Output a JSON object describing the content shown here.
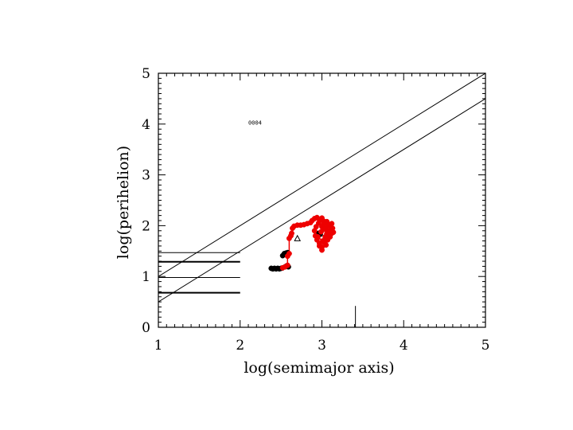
{
  "chart_data": {
    "type": "scatter",
    "xlabel": "log(semimajor axis)",
    "ylabel": "log(perihelion)",
    "xlim": [
      1,
      5
    ],
    "ylim": [
      0,
      5
    ],
    "xticks": [
      1,
      2,
      3,
      4,
      5
    ],
    "yticks": [
      0,
      1,
      2,
      3,
      4,
      5
    ],
    "xtick_labels": [
      "1",
      "2",
      "3",
      "4",
      "5"
    ],
    "ytick_labels": [
      "0",
      "1",
      "2",
      "3",
      "4",
      "5"
    ],
    "annotation": "0004",
    "annotation_at": [
      2.1,
      4.02
    ],
    "grid": false,
    "lines": [
      {
        "kind": "diagonal",
        "x": [
          1,
          5
        ],
        "y": [
          1.0,
          5.0
        ]
      },
      {
        "kind": "diagonal",
        "x": [
          1,
          5
        ],
        "y": [
          0.5,
          4.5
        ]
      },
      {
        "kind": "horizontal",
        "x": [
          1,
          2
        ],
        "y": 1.47
      },
      {
        "kind": "horizontal",
        "x": [
          1,
          2
        ],
        "y": 1.29,
        "bold": true
      },
      {
        "kind": "horizontal",
        "x": [
          1,
          2
        ],
        "y": 0.98
      },
      {
        "kind": "horizontal",
        "x": [
          1,
          2
        ],
        "y": 0.68,
        "bold": true
      },
      {
        "kind": "vertical",
        "x": 3.41,
        "y": [
          0,
          0.42
        ]
      }
    ],
    "series": [
      {
        "color": "#000000",
        "marker": "circle",
        "points": [
          [
            2.38,
            1.16
          ],
          [
            2.4,
            1.15
          ],
          [
            2.42,
            1.16
          ],
          [
            2.44,
            1.15
          ],
          [
            2.46,
            1.16
          ],
          [
            2.48,
            1.15
          ],
          [
            2.5,
            1.16
          ],
          [
            2.52,
            1.17
          ],
          [
            2.55,
            1.19
          ],
          [
            2.57,
            1.21
          ],
          [
            2.59,
            1.19
          ],
          [
            2.52,
            1.41
          ],
          [
            2.54,
            1.45
          ],
          [
            2.56,
            1.46
          ],
          [
            2.58,
            1.47
          ],
          [
            2.56,
            1.43
          ],
          [
            3.09,
            1.84
          ],
          [
            3.11,
            1.86
          ],
          [
            2.96,
            1.85
          ],
          [
            2.98,
            1.83
          ]
        ]
      },
      {
        "color": "#ee0000",
        "marker": "circle",
        "points": [
          [
            2.52,
            1.17
          ],
          [
            2.55,
            1.19
          ],
          [
            2.58,
            1.22
          ],
          [
            2.58,
            1.4
          ],
          [
            2.6,
            1.45
          ],
          [
            2.6,
            1.75
          ],
          [
            2.62,
            1.8
          ],
          [
            2.63,
            1.85
          ],
          [
            2.64,
            1.95
          ],
          [
            2.66,
            1.99
          ],
          [
            2.7,
            2.01
          ],
          [
            2.74,
            2.01
          ],
          [
            2.78,
            2.02
          ],
          [
            2.82,
            2.04
          ],
          [
            2.86,
            2.06
          ],
          [
            2.88,
            2.1
          ],
          [
            2.91,
            2.14
          ],
          [
            2.94,
            2.16
          ],
          [
            2.97,
            2.12
          ],
          [
            3.0,
            2.15
          ],
          [
            3.02,
            2.09
          ],
          [
            2.96,
            2.05
          ],
          [
            2.93,
            1.98
          ],
          [
            2.91,
            1.9
          ],
          [
            2.92,
            1.8
          ],
          [
            2.94,
            1.72
          ],
          [
            2.97,
            1.65
          ],
          [
            3.0,
            1.58
          ],
          [
            3.0,
            1.52
          ],
          [
            2.97,
            1.6
          ],
          [
            3.01,
            1.7
          ],
          [
            3.04,
            1.78
          ],
          [
            3.06,
            1.84
          ],
          [
            3.03,
            1.93
          ],
          [
            3.0,
            1.98
          ],
          [
            3.05,
            1.95
          ],
          [
            3.08,
            1.89
          ],
          [
            3.1,
            2.0
          ],
          [
            3.12,
            2.04
          ],
          [
            3.13,
            1.95
          ],
          [
            3.12,
            1.85
          ],
          [
            3.1,
            1.78
          ],
          [
            3.07,
            1.72
          ],
          [
            3.05,
            1.62
          ],
          [
            3.02,
            1.68
          ],
          [
            2.95,
            1.78
          ],
          [
            2.99,
            1.88
          ],
          [
            3.02,
            2.02
          ],
          [
            3.06,
            2.08
          ],
          [
            3.08,
            2.02
          ],
          [
            3.11,
            1.9
          ],
          [
            3.14,
            1.87
          ]
        ]
      },
      {
        "color": "#000000",
        "marker": "triangle",
        "points": [
          [
            2.7,
            1.75
          ]
        ]
      }
    ]
  }
}
